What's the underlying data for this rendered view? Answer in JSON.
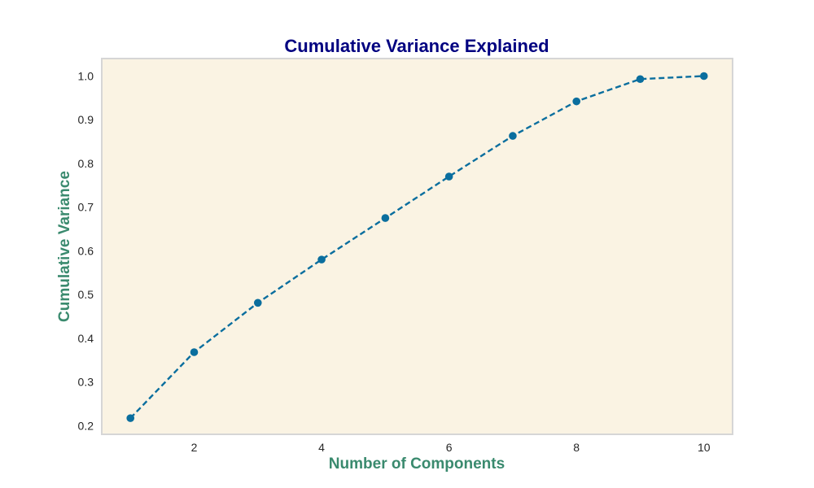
{
  "colors": {
    "title": "#000080",
    "axis_label": "#3a8a6e",
    "plot_background": "#faf3e3",
    "plot_border": "#d6d6d6",
    "line": "#0a6e9e",
    "marker": "#0a6e9e",
    "tick_text": "#262626"
  },
  "chart_data": {
    "type": "line",
    "title": "Cumulative Variance Explained",
    "xlabel": "Number of Components",
    "ylabel": "Cumulative Variance",
    "x": [
      1,
      2,
      3,
      4,
      5,
      6,
      7,
      8,
      9,
      10
    ],
    "series": [
      {
        "values": [
          0.217,
          0.368,
          0.481,
          0.58,
          0.675,
          0.77,
          0.863,
          0.942,
          0.993,
          1.0
        ],
        "line_style": "dashed",
        "marker": "circle"
      }
    ],
    "xlim": [
      0.55,
      10.45
    ],
    "ylim": [
      0.18,
      1.04
    ],
    "xticks": [
      2,
      4,
      6,
      8,
      10
    ],
    "xtick_labels": [
      "2",
      "4",
      "6",
      "8",
      "10"
    ],
    "yticks": [
      0.2,
      0.3,
      0.4,
      0.5,
      0.6,
      0.7,
      0.8,
      0.9,
      1.0
    ],
    "ytick_labels": [
      "0.2",
      "0.3",
      "0.4",
      "0.5",
      "0.6",
      "0.7",
      "0.8",
      "0.9",
      "1.0"
    ],
    "grid": false,
    "legend": "none"
  }
}
